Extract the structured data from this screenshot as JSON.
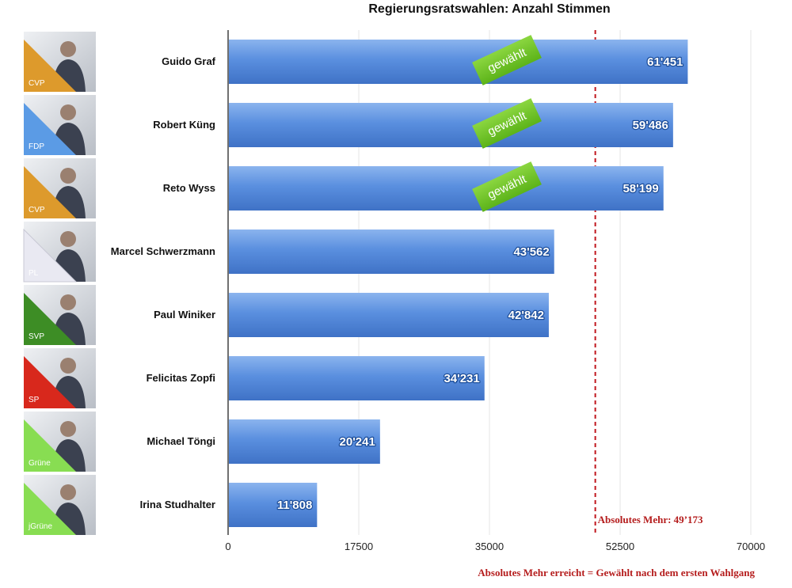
{
  "chart_data": {
    "type": "bar",
    "orientation": "horizontal",
    "title": "Regierungsratswahlen: Anzahl Stimmen",
    "categories": [
      "Guido Graf",
      "Robert Küng",
      "Reto Wyss",
      "Marcel Schwerzmann",
      "Paul Winiker",
      "Felicitas Zopfi",
      "Michael Töngi",
      "Irina Studhalter"
    ],
    "values": [
      61451,
      59486,
      58199,
      43562,
      42842,
      34231,
      20241,
      11808
    ],
    "value_labels": [
      "61'451",
      "59'486",
      "58'199",
      "43'562",
      "42'842",
      "34'231",
      "20'241",
      "11'808"
    ],
    "parties": [
      "CVP",
      "FDP",
      "CVP",
      "PL",
      "SVP",
      "SP",
      "Grüne",
      "jGrüne"
    ],
    "party_colors": [
      "#dd9a2c",
      "#5b9be5",
      "#dd9a2c",
      "#e9e9f2",
      "#3d8d25",
      "#d8281c",
      "#88dd52",
      "#88dd52"
    ],
    "elected": [
      true,
      true,
      true,
      false,
      false,
      false,
      false,
      false
    ],
    "elected_label": "gewählt",
    "xlim": [
      0,
      70000
    ],
    "xticks": [
      0,
      17500,
      35000,
      52500,
      70000
    ],
    "xtick_labels": [
      "0",
      "17500",
      "35000",
      "52500",
      "70000"
    ],
    "grid": true,
    "bar_color": "#4d83d8",
    "majority_line": {
      "value": 49173,
      "label": "Absolutes Mehr: 49’173",
      "color": "#c0171e"
    },
    "footnote": "Absolutes Mehr erreicht = Gewählt nach dem ersten Wahlgang"
  }
}
